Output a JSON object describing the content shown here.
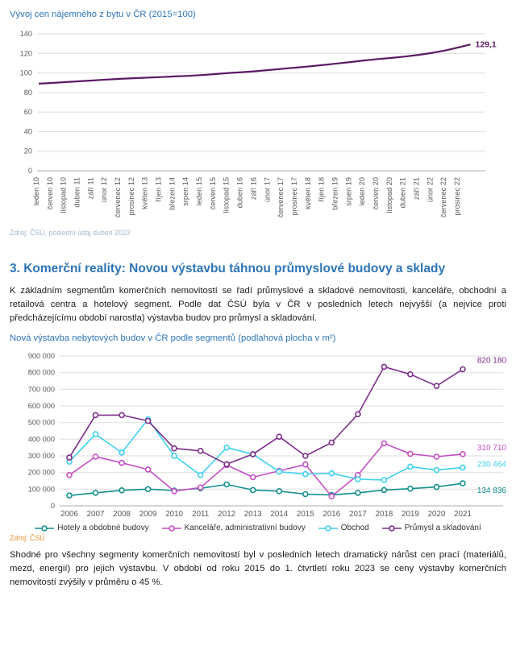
{
  "page": {
    "background": "#FFFFFF",
    "accent_blue": "#2E75B6"
  },
  "section": {
    "heading": "3.  Komerční reality: Novou výstavbu táhnou průmyslové budovy a sklady",
    "paragraph1": "K základním segmentům komerčních nemovitostí se řadí průmyslové a skladové nemovitosti, kanceláře, obchodní a retailová centra a hotelový segment. Podle dat ČSÚ byla v ČR v posledních letech nejvyšší (a nejvíce proti předcházejícímu období narostla) výstavba budov pro průmysl a skladování.",
    "paragraph2": "Shodné pro všechny segmenty komerčních nemovitostí byl v posledních letech dramatický nárůst cen prací (materiálů, mezd, energií) pro jejich výstavbu. V období od roku 2015 do 1. čtvrtletí roku 2023 se ceny výstavby komerčních nemovitostí zvýšily v průměru o 45 %.",
    "paragraph2_highlight": "45 %"
  },
  "chart_data": [
    {
      "type": "line",
      "title": "Vývoj cen nájemného z bytu v ČR (2015=100)",
      "source": "Zdroj: ČSÚ, poslední údaj duben 2023",
      "xlabel": "",
      "ylabel": "",
      "ylim": [
        0,
        140
      ],
      "ytick_step": 20,
      "grid": "horizontal",
      "legend_position": "none",
      "x_tick_labels": [
        "leden 10",
        "červen 10",
        "listopad 10",
        "duben 11",
        "září 11",
        "únor 12",
        "červenec 12",
        "prosinec 12",
        "květen 13",
        "říjen 13",
        "březen 14",
        "srpen 14",
        "leden 15",
        "červen 15",
        "listopad 15",
        "duben 16",
        "září 16",
        "únor 17",
        "červenec 17",
        "prosinec 17",
        "květen 18",
        "říjen 18",
        "březen 19",
        "srpen 19",
        "leden 20",
        "červen 20",
        "listopad 20",
        "duben 21",
        "září 21",
        "únor 22",
        "červenec 22",
        "prosinec 22"
      ],
      "series": [
        {
          "color": "#5B1A63",
          "values": [
            89,
            89.8,
            90.7,
            91.5,
            92.3,
            93.2,
            94,
            94.6,
            95.2,
            95.8,
            96.4,
            97,
            97.8,
            98.8,
            100,
            100.8,
            101.8,
            103,
            104.3,
            105.5,
            106.8,
            108.2,
            109.7,
            111.2,
            112.8,
            114.2,
            115.4,
            116.8,
            118.5,
            120.6,
            123.2,
            126.3,
            129.1
          ],
          "end_label": "129,1"
        }
      ]
    },
    {
      "type": "line",
      "title": "Nová výstavba nebytových budov v ČR podle segmentů (podlahová plocha v m²)",
      "source": "Zdroj: ČSÚ",
      "xlabel": "",
      "ylabel": "",
      "ylim": [
        0,
        900000
      ],
      "ytick_step": 100000,
      "grid": "horizontal",
      "legend_position": "bottom",
      "categories": [
        "2006",
        "2007",
        "2008",
        "2009",
        "2010",
        "2011",
        "2012",
        "2013",
        "2014",
        "2015",
        "2016",
        "2017",
        "2018",
        "2019",
        "2020",
        "2021"
      ],
      "series": [
        {
          "name": "Hotely a obdobné budovy",
          "color": "#12908E",
          "values": [
            62000,
            78000,
            93000,
            100000,
            92000,
            105000,
            128000,
            95000,
            88000,
            70000,
            65000,
            78000,
            95000,
            103000,
            113000,
            134836
          ],
          "end_label": "134 836"
        },
        {
          "name": "Kanceláře, administrativní budovy",
          "color": "#C44FC4",
          "values": [
            185000,
            295000,
            258000,
            218000,
            88000,
            110000,
            245000,
            172000,
            210000,
            248000,
            57000,
            185000,
            375000,
            312000,
            295000,
            310710
          ],
          "end_label": "310 710"
        },
        {
          "name": "Obchod",
          "color": "#3FD1EE",
          "values": [
            265000,
            430000,
            320000,
            520000,
            300000,
            185000,
            350000,
            310000,
            205000,
            190000,
            195000,
            160000,
            155000,
            235000,
            215000,
            230464
          ],
          "end_label": "230 464"
        },
        {
          "name": "Průmysl a skladování",
          "color": "#7D2E8A",
          "values": [
            290000,
            545000,
            545000,
            510000,
            345000,
            330000,
            250000,
            310000,
            415000,
            300000,
            380000,
            550000,
            835000,
            790000,
            720000,
            820180
          ],
          "end_label": "820 180"
        }
      ]
    }
  ]
}
